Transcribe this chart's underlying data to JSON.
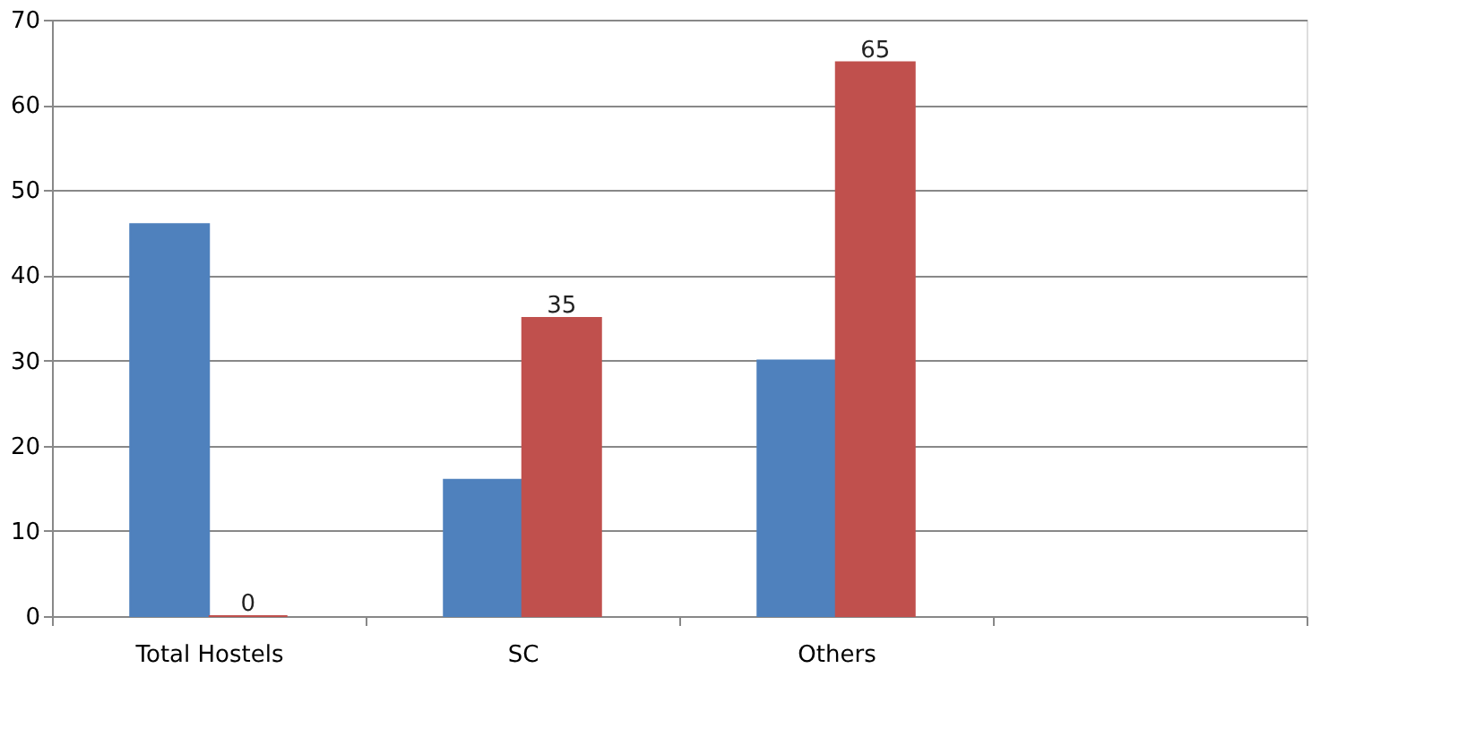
{
  "chart_data": {
    "type": "bar",
    "categories": [
      "Total Hostels",
      "SC",
      "Others",
      null
    ],
    "series": [
      {
        "color": "#4f81bd",
        "values": [
          46,
          16,
          30,
          null
        ]
      },
      {
        "color": "#c0504d",
        "values": [
          0,
          35,
          65,
          null
        ],
        "value_labels": [
          "0",
          "35",
          "65",
          null
        ]
      }
    ],
    "ylim": [
      0,
      70
    ],
    "yticks": [
      0,
      10,
      20,
      30,
      40,
      50,
      60,
      70
    ],
    "grid": "y"
  }
}
